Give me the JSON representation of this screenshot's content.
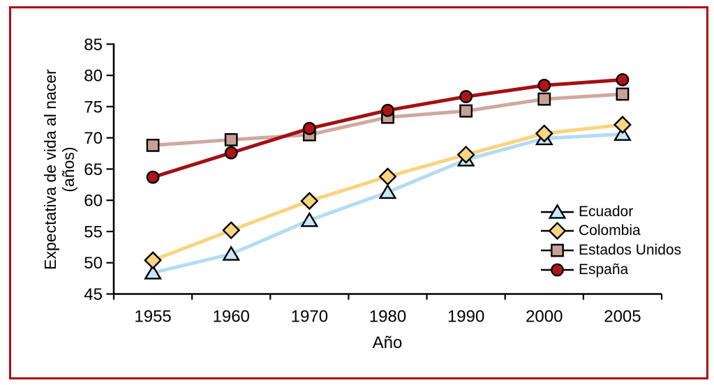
{
  "figure": {
    "background": "#ffffff",
    "border_color": "#b2050b",
    "text_color": "#000000"
  },
  "chart_data": {
    "type": "line",
    "title": "",
    "xlabel": "Año",
    "ylabel": "Expectativa de vida al nacer (años)",
    "ylabel_line1": "Expectativa de vida al nacer",
    "ylabel_line2": "(años)",
    "ylim": [
      45,
      85
    ],
    "yticks": [
      45,
      50,
      55,
      60,
      65,
      70,
      75,
      80,
      85
    ],
    "grid": false,
    "legend_position": "inside-right-middle",
    "legend_line_color": "#000000",
    "categories": [
      "1955",
      "1960",
      "1970",
      "1980",
      "1990",
      "2000",
      "2005"
    ],
    "series": [
      {
        "name": "Ecuador",
        "marker": "triangle",
        "line_color": "#b3dcf3",
        "marker_fill": "#c9e7f8",
        "values": [
          48.4,
          51.4,
          56.8,
          61.3,
          66.5,
          69.9,
          70.6
        ]
      },
      {
        "name": "Colombia",
        "marker": "diamond",
        "line_color": "#fcd37c",
        "marker_fill": "#f8d681",
        "values": [
          50.4,
          55.2,
          59.9,
          63.8,
          67.3,
          70.7,
          72.1
        ]
      },
      {
        "name": "Estados Unidos",
        "marker": "square",
        "line_color": "#d0a89f",
        "marker_fill": "#c9a096",
        "values": [
          68.8,
          69.7,
          70.5,
          73.3,
          74.3,
          76.2,
          77.0
        ]
      },
      {
        "name": "España",
        "marker": "circle",
        "line_color": "#a31013",
        "marker_fill": "#b11317",
        "values": [
          63.7,
          67.6,
          71.5,
          74.4,
          76.6,
          78.4,
          79.3
        ]
      }
    ]
  }
}
